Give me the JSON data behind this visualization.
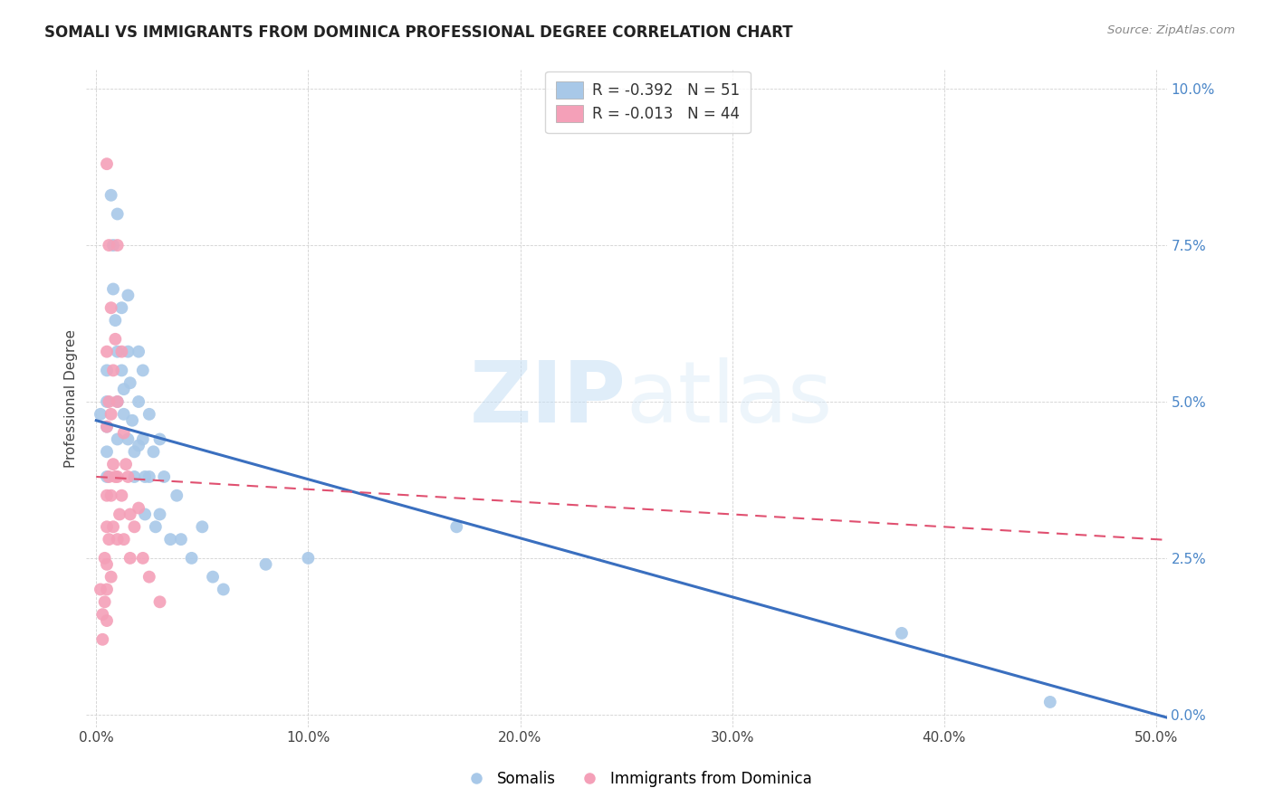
{
  "title": "SOMALI VS IMMIGRANTS FROM DOMINICA PROFESSIONAL DEGREE CORRELATION CHART",
  "source": "Source: ZipAtlas.com",
  "xlabel_ticks": [
    "0.0%",
    "10.0%",
    "20.0%",
    "30.0%",
    "40.0%",
    "50.0%"
  ],
  "xlabel_tick_vals": [
    0.0,
    0.1,
    0.2,
    0.3,
    0.4,
    0.5
  ],
  "ylabel_ticks": [
    "0.0%",
    "2.5%",
    "5.0%",
    "7.5%",
    "10.0%"
  ],
  "ylabel_tick_vals": [
    0.0,
    0.025,
    0.05,
    0.075,
    0.1
  ],
  "xlim": [
    -0.005,
    0.505
  ],
  "ylim": [
    -0.002,
    0.103
  ],
  "ylabel": "Professional Degree",
  "legend_label1": "Somalis",
  "legend_label2": "Immigrants from Dominica",
  "r1": "-0.392",
  "n1": "51",
  "r2": "-0.013",
  "n2": "44",
  "color1": "#a8c8e8",
  "color2": "#f4a0b8",
  "trendline1_color": "#3a6fbf",
  "trendline2_color": "#e05070",
  "watermark_zip": "ZIP",
  "watermark_atlas": "atlas",
  "somali_x": [
    0.002,
    0.005,
    0.005,
    0.005,
    0.005,
    0.005,
    0.007,
    0.008,
    0.008,
    0.009,
    0.01,
    0.01,
    0.01,
    0.01,
    0.012,
    0.012,
    0.013,
    0.013,
    0.015,
    0.015,
    0.015,
    0.016,
    0.017,
    0.018,
    0.018,
    0.02,
    0.02,
    0.02,
    0.022,
    0.022,
    0.023,
    0.023,
    0.025,
    0.025,
    0.027,
    0.028,
    0.03,
    0.03,
    0.032,
    0.035,
    0.038,
    0.04,
    0.045,
    0.05,
    0.055,
    0.06,
    0.08,
    0.1,
    0.17,
    0.38,
    0.45
  ],
  "somali_y": [
    0.048,
    0.055,
    0.05,
    0.046,
    0.042,
    0.038,
    0.083,
    0.075,
    0.068,
    0.063,
    0.08,
    0.058,
    0.05,
    0.044,
    0.065,
    0.055,
    0.052,
    0.048,
    0.067,
    0.058,
    0.044,
    0.053,
    0.047,
    0.042,
    0.038,
    0.058,
    0.05,
    0.043,
    0.055,
    0.044,
    0.038,
    0.032,
    0.048,
    0.038,
    0.042,
    0.03,
    0.044,
    0.032,
    0.038,
    0.028,
    0.035,
    0.028,
    0.025,
    0.03,
    0.022,
    0.02,
    0.024,
    0.025,
    0.03,
    0.013,
    0.002
  ],
  "dominica_x": [
    0.002,
    0.003,
    0.003,
    0.004,
    0.004,
    0.005,
    0.005,
    0.005,
    0.005,
    0.005,
    0.005,
    0.005,
    0.005,
    0.006,
    0.006,
    0.006,
    0.006,
    0.007,
    0.007,
    0.007,
    0.007,
    0.008,
    0.008,
    0.008,
    0.009,
    0.009,
    0.01,
    0.01,
    0.01,
    0.01,
    0.011,
    0.012,
    0.012,
    0.013,
    0.013,
    0.014,
    0.015,
    0.016,
    0.016,
    0.018,
    0.02,
    0.022,
    0.025,
    0.03
  ],
  "dominica_y": [
    0.02,
    0.016,
    0.012,
    0.025,
    0.018,
    0.088,
    0.058,
    0.046,
    0.035,
    0.03,
    0.024,
    0.02,
    0.015,
    0.075,
    0.05,
    0.038,
    0.028,
    0.065,
    0.048,
    0.035,
    0.022,
    0.055,
    0.04,
    0.03,
    0.06,
    0.038,
    0.075,
    0.05,
    0.038,
    0.028,
    0.032,
    0.058,
    0.035,
    0.045,
    0.028,
    0.04,
    0.038,
    0.032,
    0.025,
    0.03,
    0.033,
    0.025,
    0.022,
    0.018
  ]
}
